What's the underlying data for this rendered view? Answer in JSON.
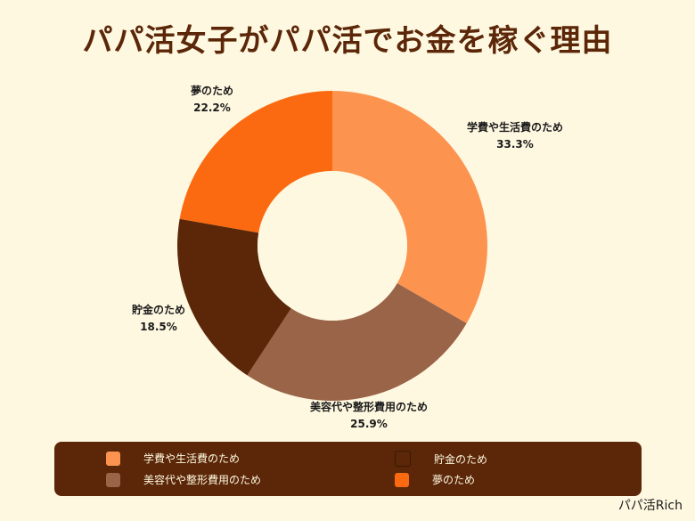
{
  "title": "パパ活女子がパパ活でお金を稼ぐ理由",
  "brand": "パパ活Rich",
  "chart_data": {
    "type": "pie",
    "title": "パパ活女子がパパ活でお金を稼ぐ理由",
    "donut": true,
    "slices": [
      {
        "label": "学費や生活費のため",
        "value": 33.3,
        "display": "33.3%",
        "color": "#fc9450"
      },
      {
        "label": "美容代や整形費用のため",
        "value": 25.9,
        "display": "25.9%",
        "color": "#9a6448"
      },
      {
        "label": "貯金のため",
        "value": 18.5,
        "display": "18.5%",
        "color": "#5b2708"
      },
      {
        "label": "夢のため",
        "value": 22.2,
        "display": "22.2%",
        "color": "#fb6a10"
      }
    ],
    "legend": [
      {
        "label": "学費や生活費のため",
        "color": "#fc9450"
      },
      {
        "label": "貯金のため",
        "color": "#5b2708"
      },
      {
        "label": "美容代や整形費用のため",
        "color": "#9a6448"
      },
      {
        "label": "夢のため",
        "color": "#fb6a10"
      }
    ],
    "legend_position": "bottom"
  }
}
